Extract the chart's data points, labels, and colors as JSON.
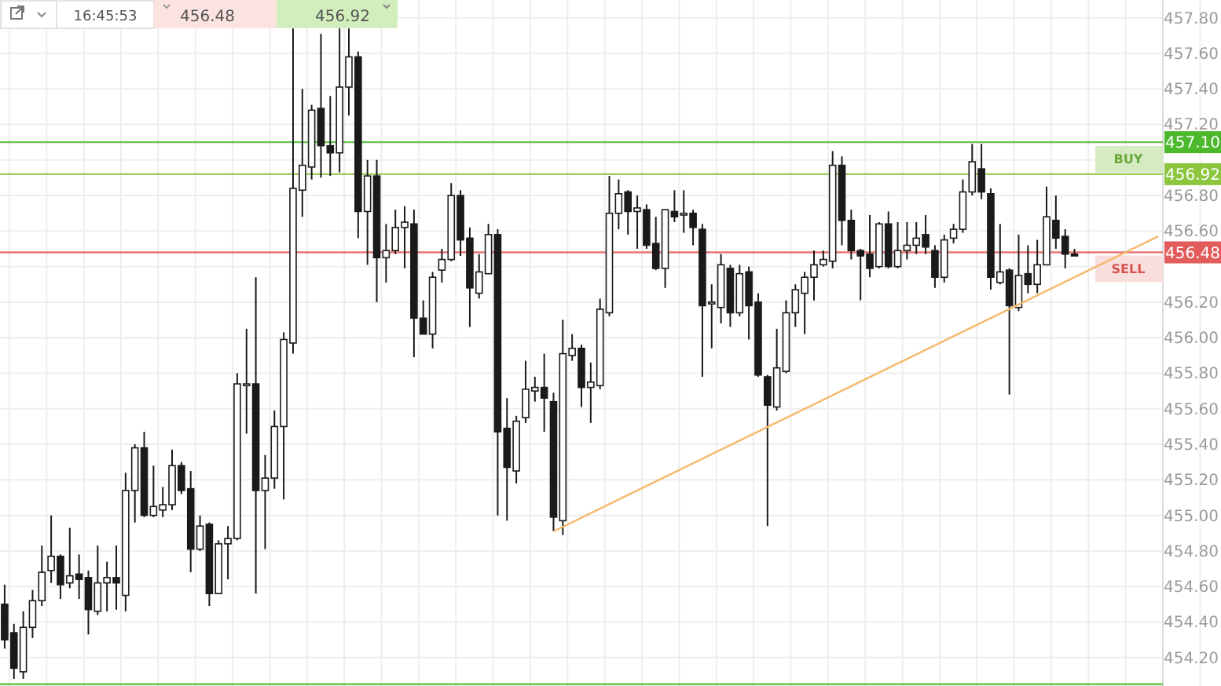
{
  "chart_data": {
    "type": "candlestick",
    "categories": [
      null,
      null,
      null,
      null,
      null,
      null,
      null,
      null,
      null,
      null,
      null,
      null,
      null,
      null,
      null,
      null,
      null,
      null,
      null,
      null,
      null,
      null,
      null,
      null,
      null,
      null,
      null,
      null,
      null,
      null,
      null,
      null,
      null,
      null,
      null,
      null,
      null,
      null,
      null,
      null,
      null,
      null,
      null,
      null,
      null,
      null,
      null,
      null,
      null,
      null,
      null,
      null,
      null,
      null,
      null,
      null,
      null,
      null,
      null,
      null,
      null,
      null,
      null,
      null,
      null,
      null,
      null,
      null,
      null,
      null,
      null,
      null,
      null,
      null,
      null,
      null,
      null,
      null,
      null,
      null,
      null,
      null,
      null,
      null,
      null,
      null,
      null,
      null,
      null,
      null,
      null,
      null,
      null,
      null,
      null,
      null,
      null,
      null,
      null,
      null,
      null,
      null,
      null,
      null,
      null,
      null,
      null,
      null,
      null,
      null,
      null,
      null,
      null,
      null,
      null,
      null,
      null,
      null,
      null,
      null,
      null,
      null,
      null,
      null,
      null
    ],
    "ylim": [
      454.04,
      457.9
    ],
    "yticks": [
      {
        "value": 457.8,
        "label": "457.80"
      },
      {
        "value": 457.6,
        "label": "457.60"
      },
      {
        "value": 457.4,
        "label": "457.40"
      },
      {
        "value": 457.2,
        "label": "457.20"
      },
      {
        "value": 457.0,
        "label": null
      },
      {
        "value": 456.8,
        "label": "456.80"
      },
      {
        "value": 456.6,
        "label": "456.60"
      },
      {
        "value": 456.4,
        "label": null
      },
      {
        "value": 456.2,
        "label": "456.20"
      },
      {
        "value": 456.0,
        "label": "456.00"
      },
      {
        "value": 455.8,
        "label": "455.80"
      },
      {
        "value": 455.6,
        "label": "455.60"
      },
      {
        "value": 455.4,
        "label": "455.40"
      },
      {
        "value": 455.2,
        "label": "455.20"
      },
      {
        "value": 455.0,
        "label": "455.00"
      },
      {
        "value": 454.8,
        "label": "454.80"
      },
      {
        "value": 454.6,
        "label": "454.60"
      },
      {
        "value": 454.4,
        "label": "454.40"
      },
      {
        "value": 454.2,
        "label": "454.20"
      }
    ],
    "tick_labels": "y",
    "grid": true,
    "annotations": [
      "16:45:53",
      "456.48",
      "456.92",
      {
        "text": "BUY",
        "y": 456.92
      },
      {
        "text": "SELL",
        "y": 456.48
      }
    ],
    "ref_lines": [
      {
        "axis": "y",
        "value": 457.1,
        "label": "457.10",
        "color": "#4cb82c"
      },
      {
        "axis": "y",
        "value": 456.92,
        "label": "456.92",
        "color": "#8cc63f"
      },
      {
        "axis": "y",
        "value": 456.48,
        "label": "456.48",
        "color": "#e25c5c"
      },
      {
        "axis": "y",
        "value": 454.05,
        "label": null,
        "color": "#4cb82c"
      }
    ],
    "series": [
      {
        "color": "#1a1a1a",
        "ohlc": [
          [
            454.5,
            454.61,
            454.25,
            454.3
          ],
          [
            454.34,
            454.39,
            454.08,
            454.14
          ],
          [
            454.12,
            454.46,
            454.08,
            454.37
          ],
          [
            454.37,
            454.58,
            454.31,
            454.52
          ],
          [
            454.52,
            454.83,
            454.49,
            454.68
          ],
          [
            454.69,
            455.0,
            454.62,
            454.77
          ],
          [
            454.77,
            454.78,
            454.53,
            454.61
          ],
          [
            454.62,
            454.93,
            454.59,
            454.66
          ],
          [
            454.67,
            454.78,
            454.53,
            454.64
          ],
          [
            454.65,
            454.69,
            454.33,
            454.47
          ],
          [
            454.46,
            454.83,
            454.44,
            454.62
          ],
          [
            454.62,
            454.74,
            454.46,
            454.65
          ],
          [
            454.65,
            454.83,
            454.47,
            454.62
          ],
          [
            454.55,
            455.24,
            454.46,
            455.14
          ],
          [
            455.14,
            455.4,
            454.96,
            455.38
          ],
          [
            455.38,
            455.47,
            454.99,
            455.0
          ],
          [
            455.0,
            455.28,
            454.99,
            455.05
          ],
          [
            455.03,
            455.16,
            454.99,
            455.06
          ],
          [
            455.06,
            455.37,
            455.03,
            455.28
          ],
          [
            455.28,
            455.3,
            455.12,
            455.14
          ],
          [
            455.15,
            455.25,
            454.68,
            454.81
          ],
          [
            454.81,
            455.0,
            454.8,
            454.94
          ],
          [
            454.95,
            454.96,
            454.49,
            454.56
          ],
          [
            454.56,
            454.86,
            454.56,
            454.84
          ],
          [
            454.84,
            454.94,
            454.64,
            454.87
          ],
          [
            454.87,
            455.8,
            454.86,
            455.74
          ],
          [
            455.73,
            456.05,
            455.46,
            455.74
          ],
          [
            455.74,
            456.34,
            454.56,
            455.14
          ],
          [
            455.14,
            455.34,
            454.81,
            455.21
          ],
          [
            455.21,
            455.59,
            455.15,
            455.5
          ],
          [
            455.5,
            456.03,
            455.09,
            455.99
          ],
          [
            455.97,
            457.74,
            455.91,
            456.84
          ],
          [
            456.83,
            457.4,
            456.68,
            456.97
          ],
          [
            456.96,
            457.31,
            456.89,
            457.28
          ],
          [
            457.29,
            457.71,
            456.9,
            457.08
          ],
          [
            457.08,
            457.36,
            456.91,
            457.04
          ],
          [
            457.04,
            457.74,
            456.93,
            457.41
          ],
          [
            457.41,
            457.74,
            457.25,
            457.58
          ],
          [
            457.58,
            457.61,
            456.56,
            456.71
          ],
          [
            456.71,
            457.0,
            456.41,
            456.91
          ],
          [
            456.91,
            457.0,
            456.2,
            456.45
          ],
          [
            456.45,
            456.64,
            456.31,
            456.49
          ],
          [
            456.49,
            456.72,
            456.47,
            456.62
          ],
          [
            456.62,
            456.74,
            456.39,
            456.65
          ],
          [
            456.64,
            456.72,
            455.89,
            456.11
          ],
          [
            456.11,
            456.21,
            456.02,
            456.02
          ],
          [
            456.02,
            456.37,
            455.94,
            456.34
          ],
          [
            456.38,
            456.5,
            456.31,
            456.44
          ],
          [
            456.44,
            456.87,
            456.43,
            456.8
          ],
          [
            456.8,
            456.83,
            456.46,
            456.55
          ],
          [
            456.56,
            456.62,
            456.06,
            456.28
          ],
          [
            456.25,
            456.47,
            456.22,
            456.37
          ],
          [
            456.36,
            456.64,
            456.36,
            456.58
          ],
          [
            456.58,
            456.61,
            455.0,
            455.47
          ],
          [
            455.49,
            455.66,
            454.97,
            455.27
          ],
          [
            455.25,
            455.56,
            455.18,
            455.53
          ],
          [
            455.55,
            455.87,
            455.52,
            455.71
          ],
          [
            455.7,
            455.78,
            455.64,
            455.72
          ],
          [
            455.72,
            455.91,
            455.47,
            455.66
          ],
          [
            455.64,
            455.69,
            454.91,
            454.99
          ],
          [
            454.97,
            456.1,
            454.89,
            455.91
          ],
          [
            455.9,
            456.02,
            455.87,
            455.94
          ],
          [
            455.94,
            455.96,
            455.61,
            455.72
          ],
          [
            455.72,
            455.86,
            455.52,
            455.75
          ],
          [
            455.73,
            456.22,
            455.71,
            456.16
          ],
          [
            456.14,
            456.91,
            456.12,
            456.7
          ],
          [
            456.7,
            456.89,
            456.61,
            456.81
          ],
          [
            456.82,
            456.83,
            456.58,
            456.71
          ],
          [
            456.71,
            456.8,
            456.5,
            456.73
          ],
          [
            456.72,
            456.75,
            456.5,
            456.52
          ],
          [
            456.53,
            456.68,
            456.38,
            456.39
          ],
          [
            456.39,
            456.72,
            456.28,
            456.72
          ],
          [
            456.71,
            456.83,
            456.65,
            456.68
          ],
          [
            456.69,
            456.83,
            456.59,
            456.7
          ],
          [
            456.7,
            456.72,
            456.52,
            456.62
          ],
          [
            456.61,
            456.64,
            455.78,
            456.18
          ],
          [
            456.19,
            456.3,
            455.94,
            456.2
          ],
          [
            456.17,
            456.47,
            456.08,
            456.41
          ],
          [
            456.39,
            456.41,
            456.06,
            456.14
          ],
          [
            456.14,
            456.41,
            456.12,
            456.36
          ],
          [
            456.37,
            456.4,
            455.99,
            456.18
          ],
          [
            456.2,
            456.25,
            455.78,
            455.79
          ],
          [
            455.78,
            455.79,
            454.94,
            455.62
          ],
          [
            455.61,
            456.05,
            455.59,
            455.83
          ],
          [
            455.81,
            456.21,
            455.8,
            456.14
          ],
          [
            456.14,
            456.3,
            456.06,
            456.27
          ],
          [
            456.25,
            456.37,
            456.02,
            456.34
          ],
          [
            456.34,
            456.49,
            456.21,
            456.41
          ],
          [
            456.41,
            456.49,
            456.4,
            456.44
          ],
          [
            456.43,
            457.05,
            456.39,
            456.97
          ],
          [
            456.97,
            457.02,
            456.52,
            456.66
          ],
          [
            456.66,
            456.72,
            456.44,
            456.49
          ],
          [
            456.49,
            456.5,
            456.21,
            456.46
          ],
          [
            456.47,
            456.69,
            456.34,
            456.39
          ],
          [
            456.4,
            456.65,
            456.39,
            456.64
          ],
          [
            456.64,
            456.71,
            456.39,
            456.4
          ],
          [
            456.4,
            456.65,
            456.39,
            456.49
          ],
          [
            456.49,
            456.65,
            456.44,
            456.52
          ],
          [
            456.52,
            456.65,
            456.47,
            456.56
          ],
          [
            456.58,
            456.69,
            456.47,
            456.51
          ],
          [
            456.49,
            456.52,
            456.28,
            456.34
          ],
          [
            456.34,
            456.58,
            456.31,
            456.55
          ],
          [
            456.56,
            456.64,
            456.53,
            456.61
          ],
          [
            456.61,
            456.89,
            456.59,
            456.82
          ],
          [
            456.82,
            457.09,
            456.8,
            456.99
          ],
          [
            456.95,
            457.09,
            456.78,
            456.82
          ],
          [
            456.81,
            456.84,
            456.27,
            456.34
          ],
          [
            456.31,
            456.64,
            456.3,
            456.37
          ],
          [
            456.38,
            456.39,
            455.68,
            456.18
          ],
          [
            456.17,
            456.58,
            456.15,
            456.35
          ],
          [
            456.36,
            456.52,
            456.25,
            456.3
          ],
          [
            456.3,
            456.55,
            456.25,
            456.41
          ],
          [
            456.41,
            456.85,
            456.41,
            456.68
          ],
          [
            456.66,
            456.8,
            456.5,
            456.56
          ],
          [
            456.57,
            456.61,
            456.39,
            456.47
          ],
          [
            456.47,
            456.5,
            456.46,
            456.46
          ],
          null,
          null,
          null,
          null,
          null,
          null,
          null,
          null,
          null
        ]
      },
      {
        "type": "line",
        "color": "#f5b96b",
        "values": [
          null,
          null,
          null,
          null,
          null,
          null,
          null,
          null,
          null,
          null,
          null,
          null,
          null,
          null,
          null,
          null,
          null,
          null,
          null,
          null,
          null,
          null,
          null,
          null,
          null,
          null,
          null,
          null,
          null,
          null,
          null,
          null,
          null,
          null,
          null,
          null,
          null,
          null,
          null,
          null,
          null,
          null,
          null,
          null,
          null,
          null,
          null,
          null,
          null,
          null,
          null,
          null,
          null,
          null,
          null,
          null,
          null,
          null,
          null,
          454.91,
          null,
          null,
          null,
          null,
          null,
          null,
          null,
          null,
          null,
          null,
          null,
          null,
          null,
          null,
          null,
          null,
          null,
          null,
          null,
          null,
          null,
          null,
          null,
          null,
          null,
          null,
          null,
          null,
          null,
          null,
          null,
          null,
          null,
          null,
          null,
          null,
          null,
          null,
          null,
          null,
          null,
          null,
          null,
          null,
          null,
          null,
          null,
          null,
          null,
          null,
          null,
          null,
          null,
          null,
          null,
          null,
          null,
          null,
          null,
          null,
          null,
          null,
          null,
          null,
          456.57
        ]
      }
    ]
  }
}
